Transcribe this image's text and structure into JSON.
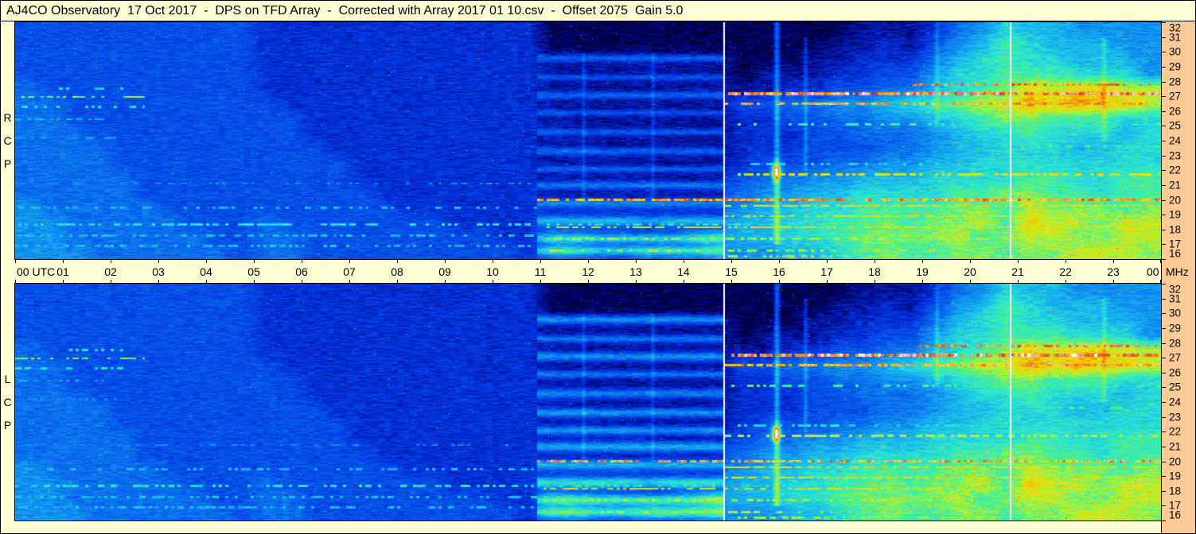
{
  "title": "AJ4CO Observatory  17 Oct 2017  -  DPS on TFD Array  -  Corrected with Array 2017 01 10.csv  -  Offset 2075  Gain 5.0",
  "colors": {
    "background": "#fdfdd4",
    "scale_background": "#fecb97",
    "text": "#000000"
  },
  "axes": {
    "time_unit": "UTC",
    "freq_unit": "MHz",
    "time_ticks": [
      "00 UTC",
      "01",
      "02",
      "03",
      "04",
      "05",
      "06",
      "07",
      "08",
      "09",
      "10",
      "11",
      "12",
      "13",
      "14",
      "15",
      "16",
      "17",
      "18",
      "19",
      "20",
      "21",
      "22",
      "23",
      "00"
    ],
    "freq_ticks": [
      "32",
      "31",
      "30",
      "29",
      "28",
      "27",
      "26",
      "25",
      "24",
      "23",
      "22",
      "21",
      "20",
      "19",
      "18",
      "17",
      "16"
    ]
  },
  "chart_data": {
    "type": "heatmap",
    "title": "AJ4CO Observatory 17 Oct 2017 - DPS on TFD Array",
    "x": {
      "label": "UTC",
      "range": [
        0,
        24
      ]
    },
    "y": {
      "label": "MHz",
      "range": [
        16,
        32
      ]
    },
    "colormap": [
      [
        0,
        "#000016"
      ],
      [
        0.09,
        "#00026e"
      ],
      [
        0.2,
        "#0030e0"
      ],
      [
        0.33,
        "#0a6cee"
      ],
      [
        0.46,
        "#17b4f0"
      ],
      [
        0.56,
        "#2ae8d0"
      ],
      [
        0.64,
        "#55f080"
      ],
      [
        0.72,
        "#b8f030"
      ],
      [
        0.8,
        "#f2da00"
      ],
      [
        0.87,
        "#f29500"
      ],
      [
        0.93,
        "#ee3500"
      ],
      [
        1,
        "#ffffff"
      ]
    ],
    "markers_utc": [
      14.83,
      20.83
    ],
    "band_region": {
      "t0": 10.92,
      "t1": 14.83,
      "cap_high": 2.3,
      "cap_mid": 4.5,
      "cap_low": 6.5
    },
    "streaks": [
      {
        "t": 15.95,
        "w": 0.06,
        "a": 3.5,
        "f0": 17,
        "f1": 32
      },
      {
        "t": 16.55,
        "w": 0.045,
        "a": 1.8,
        "f0": 22,
        "f1": 31
      },
      {
        "t": 13.35,
        "w": 0.04,
        "a": 1.2,
        "f0": 20,
        "f1": 30
      },
      {
        "t": 11.9,
        "w": 0.04,
        "a": 1.2,
        "f0": 20,
        "f1": 30
      },
      {
        "t": 19.3,
        "w": 0.05,
        "a": 1.5,
        "f0": 25,
        "f1": 32
      },
      {
        "t": 22.8,
        "w": 0.05,
        "a": 1.2,
        "f0": 24,
        "f1": 31
      }
    ],
    "blobs": [
      {
        "t": 15.93,
        "f": 21.9,
        "st": 0.09,
        "sf": 0.55,
        "a": 9
      }
    ],
    "lines": [
      {
        "f": 26.95,
        "t0": 0,
        "t1": 2.7,
        "i": 11,
        "p": 0.5
      },
      {
        "f": 26.3,
        "t0": 0,
        "t1": 2.7,
        "i": 9,
        "p": 0.4
      },
      {
        "f": 25.45,
        "t0": 0,
        "t1": 1.9,
        "i": 8,
        "p": 0.35
      },
      {
        "f": 27.5,
        "t0": 0.9,
        "t1": 2.3,
        "i": 9,
        "p": 0.35
      },
      {
        "f": 24.2,
        "t0": 0,
        "t1": 2.1,
        "i": 7,
        "p": 0.3
      },
      {
        "f": 21.1,
        "t0": 0,
        "t1": 10.92,
        "i": 7,
        "p": 0.3
      },
      {
        "f": 19.45,
        "t0": 0,
        "t1": 10.92,
        "i": 8,
        "p": 0.35
      },
      {
        "f": 18.35,
        "t0": 0,
        "t1": 24,
        "i": 9,
        "p": 0.45
      },
      {
        "f": 17.6,
        "t0": 0,
        "t1": 10.92,
        "i": 8,
        "p": 0.4
      },
      {
        "f": 16.9,
        "t0": 0,
        "t1": 10.92,
        "i": 8,
        "p": 0.4
      },
      {
        "f": 20.0,
        "t0": 10.92,
        "t1": 24,
        "i": 13,
        "p": 0.75,
        "w": 1.6
      },
      {
        "f": 21.7,
        "t0": 14.83,
        "t1": 24,
        "i": 12,
        "p": 0.55
      },
      {
        "f": 27.15,
        "t0": 14.83,
        "t1": 24,
        "i": 14,
        "p": 0.85,
        "w": 2
      },
      {
        "f": 26.5,
        "t0": 14.83,
        "t1": 24,
        "i": 13,
        "p": 0.65
      },
      {
        "f": 27.8,
        "t0": 18.8,
        "t1": 24,
        "i": 14,
        "p": 0.55
      },
      {
        "f": 25.1,
        "t0": 15,
        "t1": 24,
        "i": 10,
        "p": 0.4
      },
      {
        "f": 22.4,
        "t0": 15,
        "t1": 20.8,
        "i": 9,
        "p": 0.35
      },
      {
        "f": 19.6,
        "t0": 14.83,
        "t1": 24,
        "i": 12,
        "p": 0.7
      },
      {
        "f": 18.9,
        "t0": 14.83,
        "t1": 24,
        "i": 12,
        "p": 0.6
      },
      {
        "f": 18.15,
        "t0": 11,
        "t1": 24,
        "i": 12,
        "p": 0.6
      },
      {
        "f": 17.35,
        "t0": 11,
        "t1": 24,
        "i": 11,
        "p": 0.55
      },
      {
        "f": 16.55,
        "t0": 11,
        "t1": 24,
        "i": 11,
        "p": 0.5
      },
      {
        "f": 23.6,
        "t0": 20.8,
        "t1": 24,
        "i": 10,
        "p": 0.4
      },
      {
        "f": 16.2,
        "t0": 14.83,
        "t1": 24,
        "i": 11,
        "p": 0.5
      }
    ],
    "panels": [
      {
        "label": "RCP",
        "letters": [
          "R",
          "C",
          "P"
        ],
        "seed": 1,
        "bands": [
          [
            29.6,
            0.25,
            2.5
          ],
          [
            28.3,
            0.2,
            2
          ],
          [
            27.1,
            0.25,
            2.5
          ],
          [
            25.9,
            0.2,
            2
          ],
          [
            24.6,
            0.22,
            2.2
          ],
          [
            23.3,
            0.25,
            2.5
          ],
          [
            22.1,
            0.22,
            2.2
          ],
          [
            21.0,
            0.25,
            2.8
          ],
          [
            19.8,
            0.3,
            3
          ],
          [
            18.6,
            0.3,
            3.2
          ],
          [
            17.4,
            0.3,
            3.5
          ],
          [
            16.6,
            0.3,
            3.5
          ]
        ],
        "grid": [
          [
            "4444444444",
            "333333333333",
            "11111111",
            "1111122",
            "23568",
            "776666"
          ],
          [
            "4444444444",
            "333333333333",
            "11111111",
            "1111223",
            "24679",
            "877766"
          ],
          [
            "4444444444",
            "333333333333",
            "22222222",
            "1112233",
            "35789",
            "887776"
          ],
          [
            "4444444444",
            "333333333333",
            "22222222",
            "1222334",
            "46889",
            "998886"
          ],
          [
            "5444444444",
            "333333333333",
            "22222222",
            "2233445",
            "5789a",
            "cbccbb"
          ],
          [
            "5544444444",
            "433333333333",
            "22222222",
            "4455667",
            "89abb",
            "dcdccb"
          ],
          [
            "5544444444",
            "443333333333",
            "32222222",
            "3344556",
            "6789a",
            "a99988"
          ],
          [
            "5554444444",
            "443333333333",
            "32222222",
            "3334455",
            "56788",
            "988878"
          ],
          [
            "5555444444",
            "444333333333",
            "33222222",
            "3334445",
            "56778",
            "887788"
          ],
          [
            "5555444444",
            "444433333333",
            "33322222",
            "3444556",
            "67788",
            "888888"
          ],
          [
            "5555544444",
            "444433333333",
            "33332223",
            "4556677",
            "78888",
            "998899"
          ],
          [
            "5555544444",
            "444443333333",
            "43333334",
            "5667788",
            "8899a",
            "a99899"
          ],
          [
            "6555554444",
            "444444333333",
            "44433345",
            "6778899",
            "99aa9",
            "baaa9a"
          ],
          [
            "6655555444",
            "544444443333",
            "54443456",
            "778899a",
            "9aab9",
            "cbbabb"
          ],
          [
            "6655555544",
            "554444444433",
            "55444456",
            "77889aa",
            "aab9a",
            "bbaabb"
          ],
          [
            "6665555554",
            "554444444443",
            "55445556",
            "667789a",
            "99aa9",
            "aabbba"
          ]
        ]
      },
      {
        "label": "LCP",
        "letters": [
          "L",
          "C",
          "P"
        ],
        "seed": 2,
        "bands": [
          [
            29.6,
            0.3,
            3.8
          ],
          [
            28.3,
            0.25,
            3
          ],
          [
            27.1,
            0.3,
            3.8
          ],
          [
            25.9,
            0.25,
            3
          ],
          [
            24.6,
            0.3,
            3.4
          ],
          [
            23.3,
            0.3,
            3.8
          ],
          [
            22.1,
            0.3,
            3.6
          ],
          [
            21.0,
            0.35,
            4.2
          ],
          [
            19.8,
            0.35,
            4.2
          ],
          [
            18.6,
            0.35,
            4.4
          ],
          [
            17.4,
            0.35,
            4.6
          ],
          [
            16.6,
            0.35,
            4.6
          ]
        ],
        "grid": [
          [
            "4444444444",
            "333333333333",
            "11111111",
            "1111122",
            "23568",
            "776666"
          ],
          [
            "4444444444",
            "333333333333",
            "11111111",
            "1111223",
            "24679",
            "877766"
          ],
          [
            "4444444444",
            "333333333333",
            "22222222",
            "1112233",
            "35789",
            "887776"
          ],
          [
            "4444444444",
            "333333333333",
            "22222222",
            "1222334",
            "46889",
            "998886"
          ],
          [
            "5444444444",
            "333333333333",
            "22222222",
            "2233445",
            "5789a",
            "cbccbb"
          ],
          [
            "5544444444",
            "433333333333",
            "22222222",
            "4455667",
            "89abb",
            "dcdccb"
          ],
          [
            "5544444444",
            "443333333333",
            "32222222",
            "3344556",
            "6789a",
            "a99988"
          ],
          [
            "5554444444",
            "443333333333",
            "32222222",
            "3334455",
            "56788",
            "988878"
          ],
          [
            "5555444444",
            "444333333333",
            "33222222",
            "3334445",
            "56778",
            "887788"
          ],
          [
            "5555444444",
            "444433333333",
            "33322222",
            "3444556",
            "67788",
            "888888"
          ],
          [
            "5555544444",
            "444433333333",
            "33332223",
            "4556677",
            "78888",
            "998899"
          ],
          [
            "5555544444",
            "444443333333",
            "43333334",
            "5667788",
            "8899a",
            "a99899"
          ],
          [
            "6555554444",
            "444444333333",
            "44433345",
            "6778899",
            "99aa9",
            "baaa9a"
          ],
          [
            "6655555444",
            "544444443333",
            "54443456",
            "778899a",
            "9aab9",
            "cbbabb"
          ],
          [
            "6655555544",
            "554444444433",
            "55444456",
            "77889aa",
            "aab9a",
            "bbaabb"
          ],
          [
            "6665555554",
            "554444444443",
            "55445556",
            "667789a",
            "99aa9",
            "aabbba"
          ]
        ]
      }
    ]
  }
}
